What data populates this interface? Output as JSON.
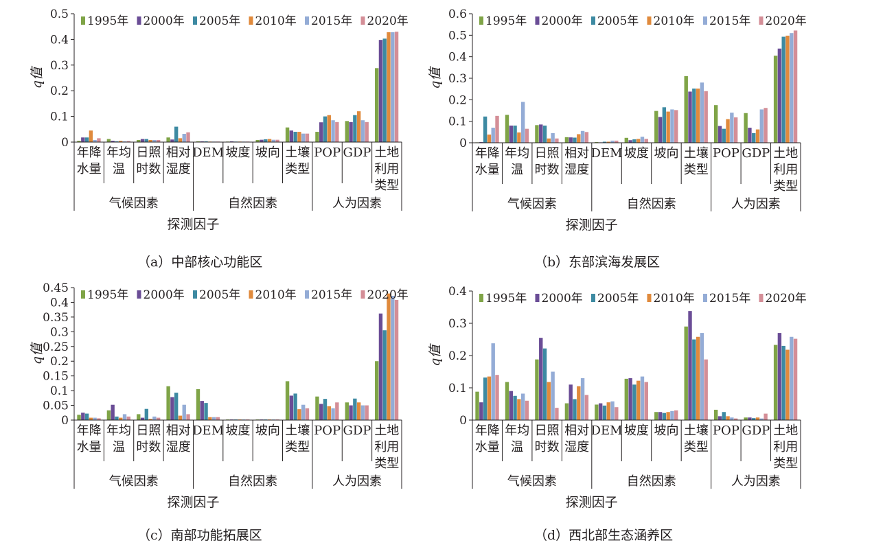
{
  "legend": [
    "1995年",
    "2000年",
    "2005年",
    "2010年",
    "2015年",
    "2020年"
  ],
  "series_colors": [
    "#7fa447",
    "#6a4d96",
    "#3d8aa2",
    "#e08a3c",
    "#94acd6",
    "#d48e97"
  ],
  "factor_groups": [
    "气候因素",
    "自然因素",
    "人为因素"
  ],
  "factors": [
    {
      "lines": [
        "年降",
        "水量"
      ]
    },
    {
      "lines": [
        "年均",
        "温"
      ]
    },
    {
      "lines": [
        "日照",
        "时数"
      ]
    },
    {
      "lines": [
        "相对",
        "湿度"
      ]
    },
    {
      "lines": [
        "DEM"
      ]
    },
    {
      "lines": [
        "坡度"
      ]
    },
    {
      "lines": [
        "坡向"
      ]
    },
    {
      "lines": [
        "土壤",
        "类型"
      ]
    },
    {
      "lines": [
        "POP"
      ]
    },
    {
      "lines": [
        "GDP"
      ]
    },
    {
      "lines": [
        "土地",
        "利用",
        "类型"
      ]
    }
  ],
  "ylabel": "q值",
  "xlabel": "探测因子",
  "chart_data": [
    {
      "id": "a",
      "type": "bar",
      "caption": "（a）中部核心功能区",
      "ylim": [
        0,
        0.5
      ],
      "yticks": [
        "0",
        "0.1",
        "0.2",
        "0.3",
        "0.4",
        "0.5"
      ],
      "categories": [
        "年降水量",
        "年均温",
        "日照时数",
        "相对湿度",
        "DEM",
        "坡度",
        "坡向",
        "土壤类型",
        "POP",
        "GDP",
        "土地利用类型"
      ],
      "series": [
        {
          "name": "1995年",
          "values": [
            0.005,
            0.012,
            0.008,
            0.018,
            0.003,
            0.002,
            0.008,
            0.057,
            0.04,
            0.082,
            0.288
          ]
        },
        {
          "name": "2000年",
          "values": [
            0.018,
            0.005,
            0.012,
            0.01,
            0.003,
            0.003,
            0.009,
            0.045,
            0.077,
            0.078,
            0.398
          ]
        },
        {
          "name": "2005年",
          "values": [
            0.018,
            0.003,
            0.012,
            0.06,
            0.003,
            0.002,
            0.011,
            0.04,
            0.1,
            0.105,
            0.403
          ]
        },
        {
          "name": "2010年",
          "values": [
            0.045,
            0.005,
            0.008,
            0.015,
            0.002,
            0.002,
            0.012,
            0.04,
            0.105,
            0.12,
            0.428
          ]
        },
        {
          "name": "2015年",
          "values": [
            0.008,
            0.003,
            0.008,
            0.032,
            0.002,
            0.002,
            0.009,
            0.033,
            0.085,
            0.085,
            0.428
          ]
        },
        {
          "name": "2020年",
          "values": [
            0.015,
            0.004,
            0.008,
            0.038,
            0.002,
            0.002,
            0.009,
            0.033,
            0.078,
            0.078,
            0.43
          ]
        }
      ]
    },
    {
      "id": "b",
      "type": "bar",
      "caption": "（b）东部滨海发展区",
      "ylim": [
        0,
        0.6
      ],
      "yticks": [
        "0",
        "0.1",
        "0.2",
        "0.3",
        "0.4",
        "0.5",
        "0.6"
      ],
      "categories": [
        "年降水量",
        "年均温",
        "日照时数",
        "相对湿度",
        "DEM",
        "坡度",
        "坡向",
        "土壤类型",
        "POP",
        "GDP",
        "土地利用类型"
      ],
      "series": [
        {
          "name": "1995年",
          "values": [
            0.002,
            0.13,
            0.082,
            0.026,
            0.003,
            0.023,
            0.148,
            0.31,
            0.175,
            0.138,
            0.405
          ]
        },
        {
          "name": "2000年",
          "values": [
            0.003,
            0.08,
            0.085,
            0.025,
            0.002,
            0.012,
            0.12,
            0.238,
            0.078,
            0.07,
            0.438
          ]
        },
        {
          "name": "2005年",
          "values": [
            0.122,
            0.08,
            0.08,
            0.024,
            0.005,
            0.016,
            0.165,
            0.252,
            0.065,
            0.045,
            0.493
          ]
        },
        {
          "name": "2010年",
          "values": [
            0.038,
            0.048,
            0.02,
            0.04,
            0.005,
            0.018,
            0.145,
            0.252,
            0.11,
            0.062,
            0.498
          ]
        },
        {
          "name": "2015年",
          "values": [
            0.07,
            0.19,
            0.045,
            0.055,
            0.01,
            0.028,
            0.155,
            0.28,
            0.14,
            0.155,
            0.51
          ]
        },
        {
          "name": "2020年",
          "values": [
            0.125,
            0.065,
            0.02,
            0.05,
            0.01,
            0.018,
            0.152,
            0.24,
            0.118,
            0.162,
            0.522
          ]
        }
      ]
    },
    {
      "id": "c",
      "type": "bar",
      "caption": "（c）南部功能拓展区",
      "ylim": [
        0,
        0.45
      ],
      "yticks": [
        "0",
        "0.05",
        "0.1",
        "0.15",
        "0.2",
        "0.25",
        "0.3",
        "0.35",
        "0.4",
        "0.45"
      ],
      "categories": [
        "年降水量",
        "年均温",
        "日照时数",
        "相对湿度",
        "DEM",
        "坡度",
        "坡向",
        "土壤类型",
        "POP",
        "GDP",
        "土地利用类型"
      ],
      "series": [
        {
          "name": "1995年",
          "values": [
            0.018,
            0.033,
            0.02,
            0.115,
            0.105,
            0.002,
            0.002,
            0.132,
            0.08,
            0.06,
            0.2
          ]
        },
        {
          "name": "2000年",
          "values": [
            0.025,
            0.052,
            0.008,
            0.078,
            0.065,
            0.002,
            0.002,
            0.083,
            0.055,
            0.05,
            0.362
          ]
        },
        {
          "name": "2005年",
          "values": [
            0.022,
            0.012,
            0.038,
            0.093,
            0.058,
            0.002,
            0.002,
            0.09,
            0.072,
            0.073,
            0.305
          ]
        },
        {
          "name": "2010年",
          "values": [
            0.008,
            0.008,
            0.004,
            0.015,
            0.01,
            0.002,
            0.002,
            0.037,
            0.047,
            0.06,
            0.43
          ]
        },
        {
          "name": "2015年",
          "values": [
            0.008,
            0.02,
            0.012,
            0.052,
            0.01,
            0.002,
            0.002,
            0.052,
            0.04,
            0.05,
            0.422
          ]
        },
        {
          "name": "2020年",
          "values": [
            0.006,
            0.012,
            0.008,
            0.02,
            0.01,
            0.002,
            0.002,
            0.04,
            0.06,
            0.05,
            0.408
          ]
        }
      ]
    },
    {
      "id": "d",
      "type": "bar",
      "caption": "（d）西北部生态涵养区",
      "ylim": [
        0,
        0.4
      ],
      "yticks": [
        "0",
        "0.1",
        "0.2",
        "0.3",
        "0.4"
      ],
      "categories": [
        "年降水量",
        "年均温",
        "日照时数",
        "相对湿度",
        "DEM",
        "坡度",
        "坡向",
        "土壤类型",
        "POP",
        "GDP",
        "土地利用类型"
      ],
      "series": [
        {
          "name": "1995年",
          "values": [
            0.088,
            0.118,
            0.188,
            0.052,
            0.048,
            0.128,
            0.025,
            0.29,
            0.032,
            0.008,
            0.233
          ]
        },
        {
          "name": "2000年",
          "values": [
            0.055,
            0.09,
            0.255,
            0.11,
            0.052,
            0.13,
            0.025,
            0.338,
            0.012,
            0.008,
            0.27
          ]
        },
        {
          "name": "2005年",
          "values": [
            0.132,
            0.075,
            0.222,
            0.065,
            0.045,
            0.11,
            0.022,
            0.25,
            0.025,
            0.006,
            0.23
          ]
        },
        {
          "name": "2010年",
          "values": [
            0.135,
            0.065,
            0.118,
            0.105,
            0.055,
            0.122,
            0.025,
            0.258,
            0.012,
            0.008,
            0.218
          ]
        },
        {
          "name": "2015年",
          "values": [
            0.238,
            0.082,
            0.15,
            0.13,
            0.058,
            0.135,
            0.028,
            0.27,
            0.008,
            0.005,
            0.258
          ]
        },
        {
          "name": "2020年",
          "values": [
            0.14,
            0.06,
            0.038,
            0.078,
            0.04,
            0.118,
            0.03,
            0.188,
            0.005,
            0.02,
            0.252
          ]
        }
      ]
    }
  ]
}
